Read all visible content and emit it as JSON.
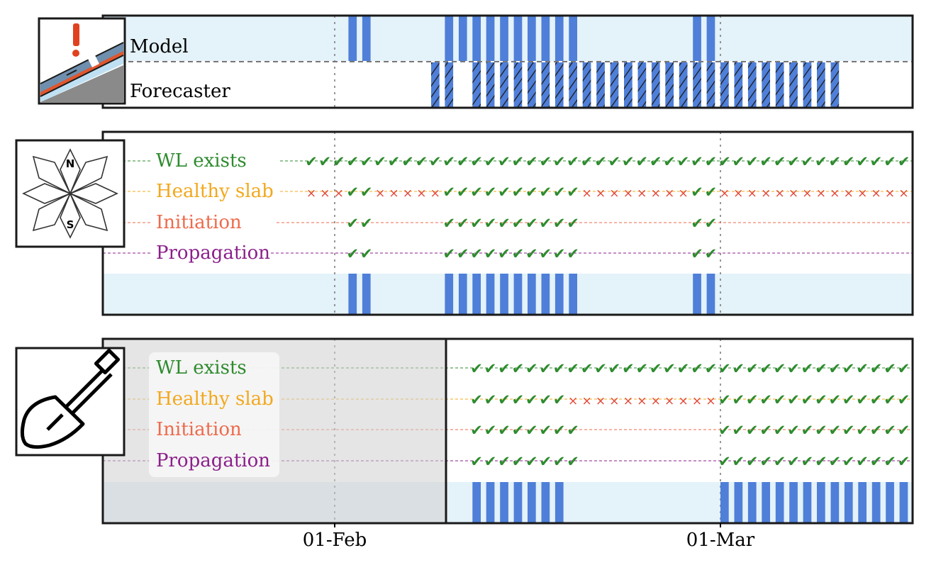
{
  "colors": {
    "bar": "#4f7fd8",
    "band": "#e4f2f9",
    "ok": "#2e8b2e",
    "no": "#e04535",
    "wl": "#2e8b2e",
    "slab": "#f2a81d",
    "init": "#ee6a4c",
    "prop": "#8b1f8b",
    "shade": "#e5e5e5",
    "frame": "#1a1a1a"
  },
  "x_axis": {
    "tick_labels": [
      "01-Feb",
      "01-Mar"
    ]
  },
  "icons": [
    "avalanche-warning-icon",
    "compass-rose-icon",
    "shovel-icon"
  ],
  "chart_data": [
    {
      "type": "bar",
      "panel": "problem-comparison",
      "rows": [
        "Model",
        "Forecaster"
      ],
      "model_days": [
        1,
        2,
        8,
        9,
        10,
        11,
        12,
        13,
        14,
        15,
        16,
        17,
        26,
        27
      ],
      "forecaster_days_solid": [
        7,
        8
      ],
      "forecaster_days_hatched": [
        10,
        11,
        12,
        13,
        14,
        15,
        16,
        17,
        18,
        19,
        20,
        21,
        22,
        23,
        24,
        25,
        26,
        27,
        28,
        29,
        30,
        31,
        32,
        33,
        34,
        35,
        36
      ]
    },
    {
      "type": "table",
      "panel": "model-criteria",
      "compass": [
        "N",
        "S"
      ],
      "criteria": [
        "WL exists",
        "Healthy slab",
        "Initiation",
        "Propagation"
      ],
      "x_range": [
        -3,
        49
      ],
      "wl_exists_ok": [
        -2,
        -1,
        0,
        1,
        2,
        3,
        4,
        5,
        6,
        7,
        8,
        9,
        10,
        11,
        12,
        13,
        14,
        15,
        16,
        17,
        18,
        19,
        20,
        21,
        22,
        23,
        24,
        25,
        26,
        27,
        28,
        29,
        30,
        31,
        32,
        33,
        34,
        35,
        36,
        37,
        38,
        39,
        40,
        41,
        42,
        43,
        44,
        45,
        46,
        47,
        48,
        49
      ],
      "healthy_slab_ok": [
        1,
        2,
        8,
        9,
        10,
        11,
        12,
        13,
        14,
        15,
        16,
        17,
        26,
        27
      ],
      "healthy_slab_no": [
        -2,
        -1,
        0,
        3,
        4,
        5,
        6,
        7,
        18,
        19,
        20,
        21,
        22,
        23,
        24,
        25,
        28,
        29,
        30,
        31,
        32,
        33,
        34,
        35,
        36,
        37,
        38,
        39,
        40,
        41,
        42,
        43,
        44,
        45,
        46,
        47,
        48,
        49
      ],
      "initiation_ok": [
        1,
        2,
        8,
        9,
        10,
        11,
        12,
        13,
        14,
        15,
        16,
        17,
        26,
        27
      ],
      "propagation_ok": [
        1,
        2,
        8,
        9,
        10,
        11,
        12,
        13,
        14,
        15,
        16,
        17,
        26,
        27
      ],
      "result_days": [
        1,
        2,
        8,
        9,
        10,
        11,
        12,
        13,
        14,
        15,
        16,
        17,
        26,
        27
      ]
    },
    {
      "type": "table",
      "panel": "snowpit-criteria",
      "criteria": [
        "WL exists",
        "Healthy slab",
        "Initiation",
        "Propagation"
      ],
      "unobserved_until": 9.5,
      "wl_exists_ok": [
        10,
        11,
        12,
        13,
        14,
        15,
        16,
        17,
        18,
        19,
        20,
        21,
        22,
        23,
        24,
        25,
        26,
        27,
        28,
        29,
        30,
        31,
        32,
        33,
        34,
        35,
        36,
        37,
        38,
        39,
        40,
        41,
        42,
        43,
        44,
        45,
        46,
        47,
        48,
        49
      ],
      "healthy_slab_ok": [
        10,
        11,
        12,
        13,
        14,
        15,
        16,
        28,
        29,
        30,
        31,
        32,
        33,
        34,
        35,
        36,
        37,
        38,
        39,
        40,
        41,
        42,
        43,
        44,
        45,
        46,
        47,
        48,
        49
      ],
      "healthy_slab_no": [
        17,
        18,
        19,
        20,
        21,
        22,
        23,
        24,
        25,
        26,
        27
      ],
      "initiation_ok": [
        10,
        11,
        12,
        13,
        14,
        15,
        16,
        17,
        28,
        29,
        30,
        31,
        32,
        33,
        34,
        35,
        36,
        37,
        38,
        39,
        40,
        41,
        42,
        43,
        44,
        45,
        46,
        47,
        48,
        49
      ],
      "propagation_ok": [
        10,
        11,
        12,
        13,
        14,
        15,
        16,
        17,
        28,
        29,
        30,
        31,
        32,
        33,
        34,
        35,
        36,
        37,
        38,
        39,
        40,
        41,
        42,
        43,
        44,
        45,
        46,
        47,
        48,
        49
      ],
      "result_days": [
        10,
        11,
        12,
        13,
        14,
        15,
        16,
        28,
        29,
        30,
        31,
        32,
        33,
        34,
        35,
        36,
        37,
        38,
        39,
        40,
        41,
        42,
        43,
        44,
        45,
        46,
        47,
        48,
        49
      ]
    }
  ]
}
